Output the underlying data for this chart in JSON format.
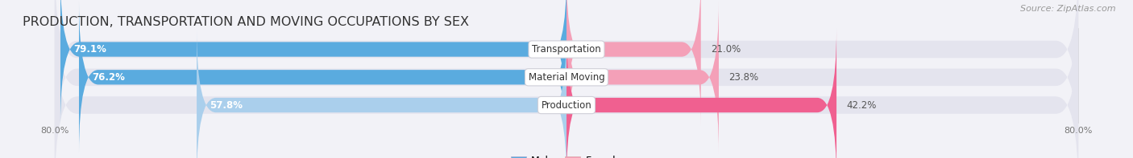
{
  "title": "PRODUCTION, TRANSPORTATION AND MOVING OCCUPATIONS BY SEX",
  "source": "Source: ZipAtlas.com",
  "categories": [
    "Transportation",
    "Material Moving",
    "Production"
  ],
  "male_values": [
    79.1,
    76.2,
    57.8
  ],
  "female_values": [
    21.0,
    23.8,
    42.2
  ],
  "male_color_top": "#5aabdf",
  "male_color_bottom": "#aacfec",
  "female_color_top": "#f4a0b8",
  "female_color_bottom": "#f06090",
  "axis_label_left": "80.0%",
  "axis_label_right": "80.0%",
  "bar_height": 0.62,
  "background_color": "#f2f2f7",
  "bar_bg_color": "#e4e4ee",
  "title_fontsize": 11.5,
  "source_fontsize": 8,
  "value_fontsize": 8.5,
  "cat_fontsize": 8.5,
  "tick_fontsize": 8,
  "legend_fontsize": 9
}
